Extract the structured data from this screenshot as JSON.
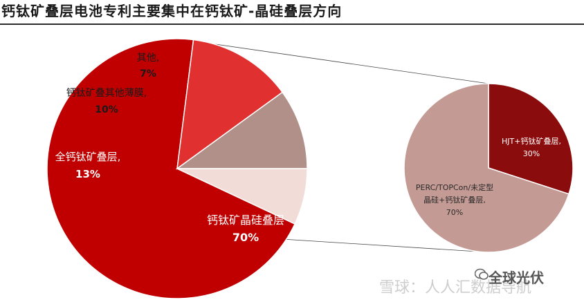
{
  "title": "钙钛矿叠层电池专利主要集中在钙钛矿-晶硅叠层方向",
  "chart_data": [
    {
      "type": "pie",
      "slices": [
        {
          "label": "钙钛矿晶硅叠层",
          "value_text": "70%",
          "value": 70,
          "color": "#c00000"
        },
        {
          "label": "全钙钛矿叠层,",
          "value_text": "13%",
          "value": 13,
          "color": "#e03030"
        },
        {
          "label": "钙钛矿叠其他薄膜,",
          "value_text": "10%",
          "value": 10,
          "color": "#b09088"
        },
        {
          "label": "其他,",
          "value_text": "7%",
          "value": 7,
          "color": "#f2dcd8"
        }
      ]
    },
    {
      "type": "pie",
      "slices": [
        {
          "label": "HJT+钙钛矿叠层,",
          "value_text": "30%",
          "value": 30,
          "color": "#8b0c0c"
        },
        {
          "label": "PERC/TOPCon/未定型 晶硅+钙钛矿叠层,",
          "value_text": "70%",
          "value": 70,
          "color": "#c49a94"
        }
      ]
    }
  ],
  "watermark": {
    "left_text": "雪球：人人汇数据导航",
    "right_text": "全球光伏"
  }
}
